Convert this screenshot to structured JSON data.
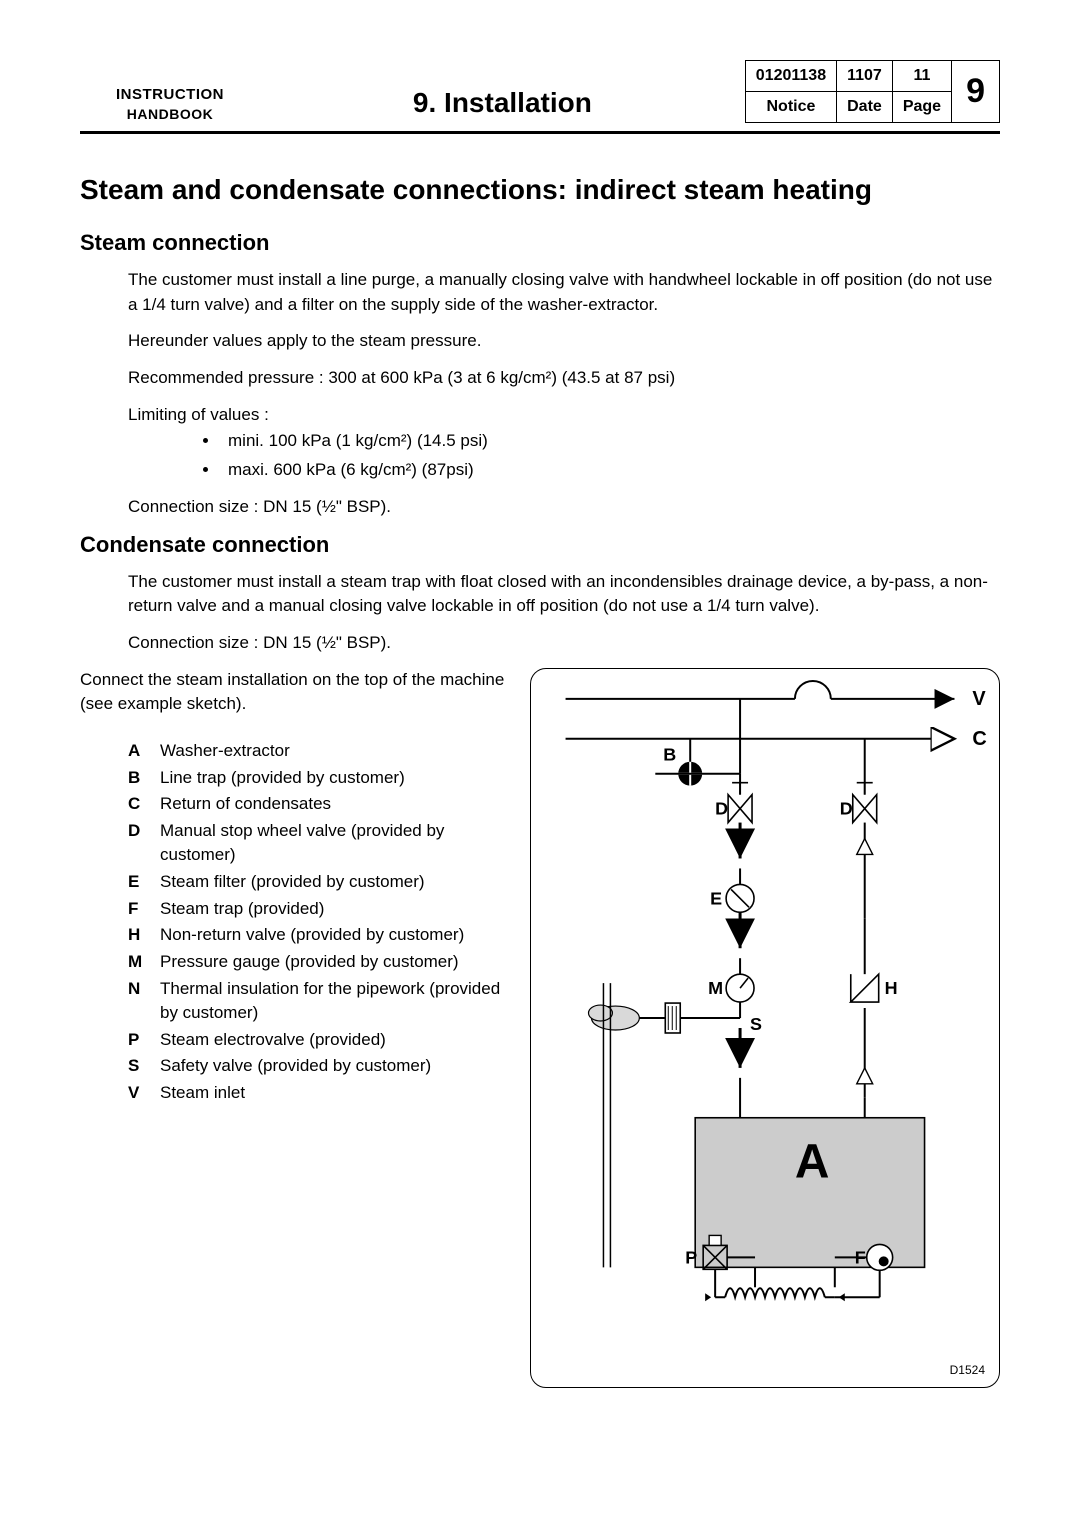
{
  "header": {
    "left_line1": "INSTRUCTION",
    "left_line2": "HANDBOOK",
    "center": "9. Installation",
    "table": {
      "r1c1": "01201138",
      "r1c2": "1107",
      "r1c3": "11",
      "r2c1": "Notice",
      "r2c2": "Date",
      "r2c3": "Page",
      "big": "9"
    }
  },
  "title": "Steam and condensate connections:  indirect steam heating",
  "section1": {
    "heading": "Steam connection",
    "p1": "The customer must install a line purge, a manually closing valve with handwheel lockable in off position (do not use a 1/4 turn valve) and a filter on the supply side of the washer-extractor.",
    "p2": "Hereunder values apply to the steam pressure.",
    "p3": "Recommended pressure : 300 at 600 kPa  (3 at 6 kg/cm²) (43.5 at 87 psi)",
    "p4": "Limiting of values :",
    "bullets": [
      "mini. 100 kPa (1 kg/cm²) (14.5 psi)",
      "maxi. 600 kPa (6 kg/cm²) (87psi)"
    ],
    "p5": "Connection size : DN 15 (½\" BSP)."
  },
  "section2": {
    "heading": "Condensate connection",
    "p1": "The customer must install a steam trap with float closed with an incondensibles drainage device, a by-pass, a non-return valve and a manual closing valve lockable in off position (do not use a 1/4 turn valve).",
    "p2": "Connection size : DN 15 (½\" BSP).",
    "p3": "Connect the steam installation on the top of the machine (see example sketch)."
  },
  "legend": [
    {
      "k": "A",
      "t": "Washer-extractor"
    },
    {
      "k": "B",
      "t": "Line trap (provided by customer)"
    },
    {
      "k": "C",
      "t": "Return of condensates"
    },
    {
      "k": "D",
      "t": "Manual stop wheel valve (provided by customer)"
    },
    {
      "k": "E",
      "t": "Steam filter (provided by customer)"
    },
    {
      "k": "F",
      "t": "Steam trap (provided)"
    },
    {
      "k": "H",
      "t": "Non-return valve (provided  by customer)"
    },
    {
      "k": "M",
      "t": "Pressure gauge (provided  by customer)"
    },
    {
      "k": "N",
      "t": "Thermal insulation for the pipework (provided by customer)"
    },
    {
      "k": "P",
      "t": "Steam electrovalve (provided)"
    },
    {
      "k": "S",
      "t": "Safety valve (provided by customer)"
    },
    {
      "k": "V",
      "t": "Steam inlet"
    }
  ],
  "diagram": {
    "ref": "D1524",
    "label_A": "A",
    "labels": {
      "B": "B",
      "C": "C",
      "D": "D",
      "E": "E",
      "F": "F",
      "H": "H",
      "M": "M",
      "P": "P",
      "S": "S",
      "V": "V"
    },
    "colors": {
      "stroke": "#000000",
      "fill_light": "#d9d9d9",
      "fill_box": "#cccccc"
    }
  }
}
